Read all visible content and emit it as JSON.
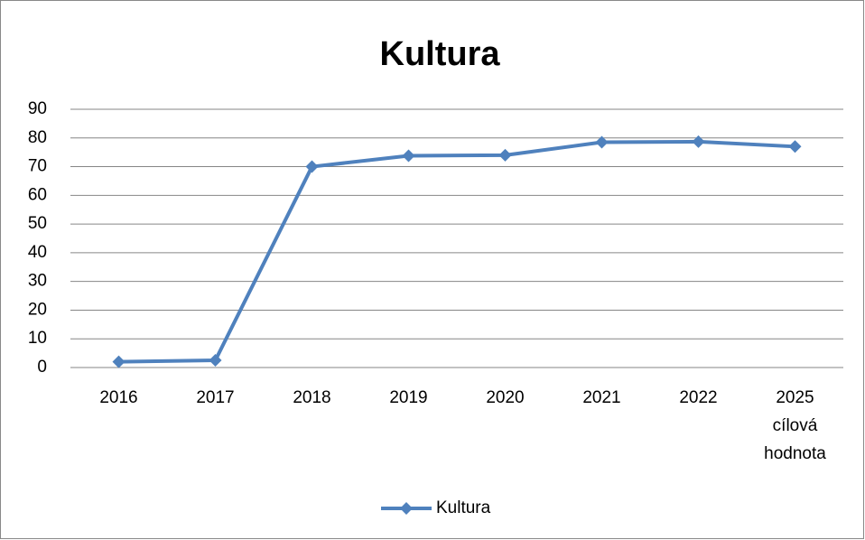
{
  "chart_data": {
    "type": "line",
    "title": "Kultura",
    "categories": [
      "2016",
      "2017",
      "2018",
      "2019",
      "2020",
      "2021",
      "2022",
      "2025 cílová hodnota"
    ],
    "series": [
      {
        "name": "Kultura",
        "color": "#4f81bd",
        "values": [
          2,
          2.5,
          70,
          73.8,
          74,
          78.5,
          78.7,
          77
        ]
      }
    ],
    "ylim": [
      0,
      90
    ],
    "yticks": [
      0,
      10,
      20,
      30,
      40,
      50,
      60,
      70,
      80,
      90
    ],
    "grid": true,
    "legend": "bottom"
  }
}
